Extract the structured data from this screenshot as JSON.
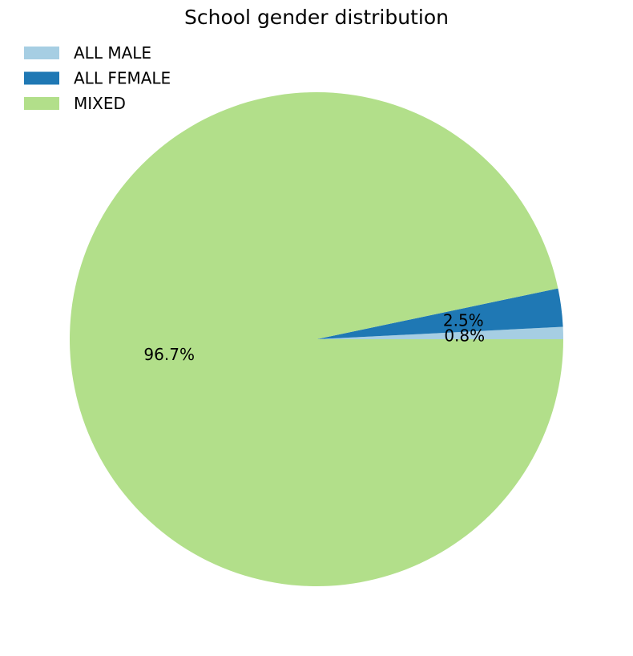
{
  "chart_data": {
    "type": "pie",
    "title": "School gender distribution",
    "categories": [
      "ALL MALE",
      "ALL FEMALE",
      "MIXED"
    ],
    "values": [
      0.8,
      2.5,
      96.7
    ],
    "value_labels": [
      "0.8%",
      "2.5%",
      "96.7%"
    ],
    "colors": [
      "#a6cee3",
      "#1f78b4",
      "#b2df8a"
    ],
    "start_angle_deg": 0,
    "direction": "counterclockwise",
    "legend_position": "top-left"
  }
}
